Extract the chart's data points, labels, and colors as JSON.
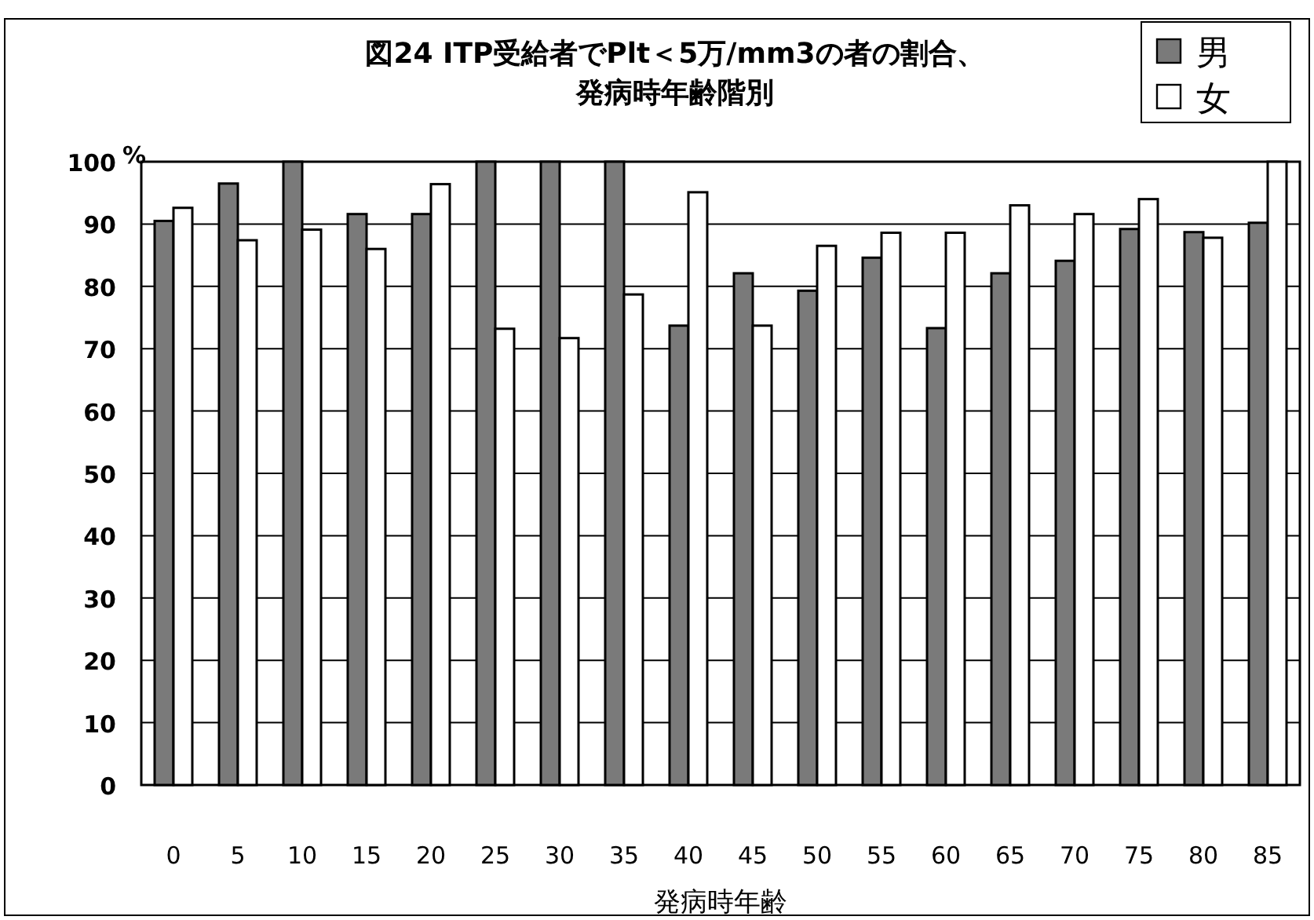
{
  "chart_data": {
    "type": "bar",
    "title": "図24 ITP受給者でPlt＜5万/mm3の者の割合、",
    "subtitle": "発病時年齢階別",
    "xlabel": "発病時年齢",
    "ylabel": "%",
    "categories": [
      "0",
      "5",
      "10",
      "15",
      "20",
      "25",
      "30",
      "35",
      "40",
      "45",
      "50",
      "55",
      "60",
      "65",
      "70",
      "75",
      "80",
      "85"
    ],
    "series": [
      {
        "name": "男",
        "color": "#7a7a7a",
        "values": [
          90.5,
          96.5,
          100,
          91.6,
          91.6,
          100,
          100,
          100,
          73.7,
          82.1,
          79.3,
          84.6,
          73.3,
          82.1,
          84.1,
          89.2,
          88.7,
          90.2
        ]
      },
      {
        "name": "女",
        "color": "#ffffff",
        "values": [
          92.6,
          87.4,
          89.1,
          86,
          96.4,
          73.2,
          71.7,
          78.7,
          95.1,
          73.7,
          86.5,
          88.6,
          88.6,
          93,
          91.6,
          94,
          87.8,
          100
        ]
      }
    ],
    "ylim": [
      0,
      100
    ],
    "yticks": [
      0,
      10,
      20,
      30,
      40,
      50,
      60,
      70,
      80,
      90,
      100
    ],
    "grid": "y",
    "legend": "top right"
  }
}
